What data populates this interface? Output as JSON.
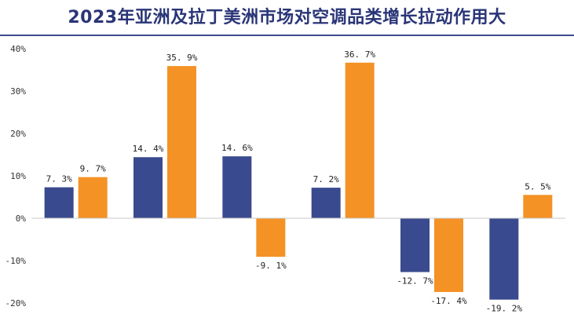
{
  "title": "2023年亚洲及拉丁美洲市场对空调品类增长拉动作用大",
  "chart_data": {
    "type": "bar",
    "title": "2023年亚洲及拉丁美洲市场对空调品类增长拉动作用大",
    "categories": [
      "",
      "",
      "",
      "",
      "",
      ""
    ],
    "yticks": [
      "40%",
      "30%",
      "20%",
      "10%",
      "0%",
      "-10%",
      "-20%"
    ],
    "ylim": [
      -20,
      40
    ],
    "grid": false,
    "series": [
      {
        "color": "#3a4a8e",
        "values": [
          7.3,
          14.4,
          14.6,
          7.2,
          -12.7,
          -19.2
        ],
        "labels": [
          "7. 3%",
          "14. 4%",
          "14. 6%",
          "7. 2%",
          "-12. 7%",
          "-19. 2%"
        ]
      },
      {
        "color": "#f49225",
        "values": [
          9.7,
          35.9,
          -9.1,
          36.7,
          -17.4,
          5.5
        ],
        "labels": [
          "9. 7%",
          "35. 9%",
          "-9. 1%",
          "36. 7%",
          "-17. 4%",
          "5. 5%"
        ]
      }
    ]
  }
}
